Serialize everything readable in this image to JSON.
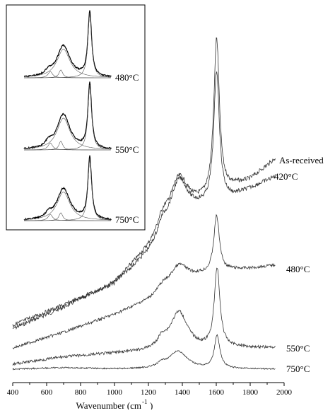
{
  "chart_data": {
    "type": "line",
    "xlabel": "Wavenumber (cm",
    "xlabel_sup": "-1",
    "xlabel_end": ")",
    "ylabel": "",
    "xlim": [
      400,
      2000
    ],
    "xticks": [
      "400",
      "600",
      "800",
      "1000",
      "1200",
      "1400",
      "1600",
      "1800",
      "2000"
    ],
    "grid": false,
    "legend": "none",
    "series": [
      {
        "name": "As-received",
        "baseline": [
          [
            400,
            465
          ],
          [
            700,
            435
          ],
          [
            1000,
            400
          ],
          [
            1200,
            352
          ],
          [
            1300,
            320
          ],
          [
            1500,
            292
          ],
          [
            1700,
            265
          ],
          [
            1800,
            255
          ],
          [
            1950,
            225
          ]
        ],
        "peak_D": 58,
        "peak_G": 220,
        "D_center": 1380,
        "G_center": 1602,
        "noise": 3
      },
      {
        "name": "420°C",
        "baseline": [
          [
            400,
            460
          ],
          [
            700,
            432
          ],
          [
            1000,
            402
          ],
          [
            1200,
            360
          ],
          [
            1300,
            333
          ],
          [
            1500,
            300
          ],
          [
            1700,
            280
          ],
          [
            1800,
            268
          ],
          [
            1950,
            250
          ]
        ],
        "peak_D": 65,
        "peak_G": 185,
        "D_center": 1380,
        "G_center": 1602,
        "noise": 3
      },
      {
        "name": "480°C",
        "baseline": [
          [
            400,
            492
          ],
          [
            700,
            470
          ],
          [
            1000,
            445
          ],
          [
            1200,
            425
          ],
          [
            1300,
            410
          ],
          [
            1500,
            392
          ],
          [
            1700,
            382
          ],
          [
            1800,
            380
          ],
          [
            1950,
            375
          ]
        ],
        "peak_D": 28,
        "peak_G": 80,
        "D_center": 1380,
        "G_center": 1602,
        "noise": 2
      },
      {
        "name": "550°C",
        "baseline": [
          [
            400,
            515
          ],
          [
            700,
            505
          ],
          [
            1000,
            500
          ],
          [
            1200,
            498
          ],
          [
            1500,
            496
          ],
          [
            1700,
            492
          ],
          [
            1950,
            492
          ]
        ],
        "peak_D": 55,
        "peak_G": 112,
        "D_center": 1380,
        "G_center": 1605,
        "noise": 2
      },
      {
        "name": "750°C",
        "baseline": [
          [
            400,
            522
          ],
          [
            700,
            520
          ],
          [
            1000,
            522
          ],
          [
            1200,
            522
          ],
          [
            1500,
            522
          ],
          [
            1700,
            522
          ],
          [
            1950,
            522
          ]
        ],
        "peak_D": 25,
        "peak_G": 46,
        "D_center": 1375,
        "G_center": 1605,
        "noise": 1
      }
    ],
    "inset": {
      "labels": [
        "480°C",
        "550°C",
        "750°C"
      ]
    }
  }
}
